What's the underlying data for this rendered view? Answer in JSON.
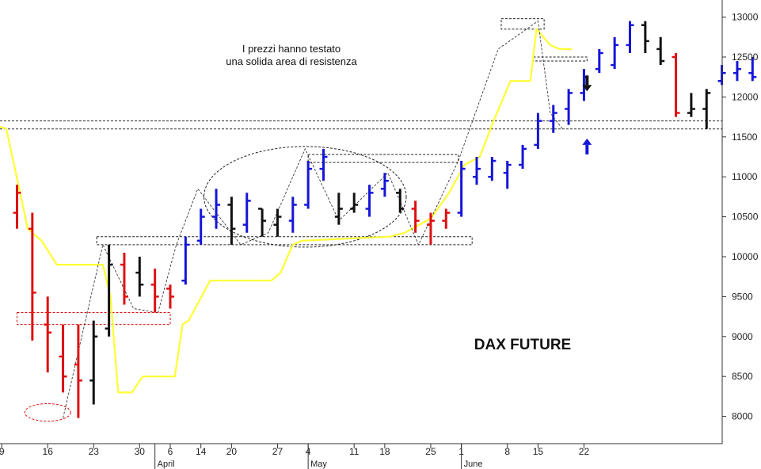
{
  "chart_data": {
    "type": "ohlc",
    "title": "DAX FUTURE",
    "annotation": [
      "I prezzi hanno testato",
      "una solida area di resistenza"
    ],
    "ylim": [
      7550,
      13150
    ],
    "y_ticks": [
      8000,
      8500,
      9000,
      9500,
      10000,
      10500,
      11000,
      11500,
      12000,
      12500,
      13000
    ],
    "x_range": [
      -1,
      37
    ],
    "x_ticks": [
      {
        "i": -1,
        "label": "9"
      },
      {
        "i": 2,
        "label": "16"
      },
      {
        "i": 5,
        "label": "23"
      },
      {
        "i": 8,
        "label": "30"
      },
      {
        "i": 10,
        "label": "6"
      },
      {
        "i": 12,
        "label": "14"
      },
      {
        "i": 14,
        "label": "20"
      },
      {
        "i": 17,
        "label": "27"
      },
      {
        "i": 19,
        "label": "4"
      },
      {
        "i": 22,
        "label": "11"
      },
      {
        "i": 24,
        "label": "18"
      },
      {
        "i": 27,
        "label": "25"
      },
      {
        "i": 29,
        "label": "1"
      },
      {
        "i": 32,
        "label": "8"
      },
      {
        "i": 34,
        "label": "15"
      },
      {
        "i": 37,
        "label": "22"
      }
    ],
    "x_ticks_partial": [
      "9",
      "2"
    ],
    "month_labels": [
      {
        "i": 9,
        "label": "April"
      },
      {
        "i": 19,
        "label": "May"
      },
      {
        "i": 29,
        "label": "June"
      }
    ],
    "colors": {
      "up": "#1515d8",
      "down": "#dd1111",
      "neutral": "#111111",
      "supertrend": "#ffff33"
    },
    "bars": [
      {
        "o": 10550,
        "h": 10900,
        "l": 10350,
        "c": 10800,
        "color": "down"
      },
      {
        "o": 10350,
        "h": 10550,
        "l": 8950,
        "c": 9550,
        "color": "down"
      },
      {
        "o": 9150,
        "h": 9500,
        "l": 8550,
        "c": 9050,
        "color": "down"
      },
      {
        "o": 8750,
        "h": 9150,
        "l": 8300,
        "c": 8500,
        "color": "down"
      },
      {
        "o": 8650,
        "h": 9150,
        "l": 7980,
        "c": 8450,
        "color": "down"
      },
      {
        "o": 8450,
        "h": 9200,
        "l": 8150,
        "c": 9000,
        "color": "neutral"
      },
      {
        "o": 9100,
        "h": 10150,
        "l": 9000,
        "c": 9900,
        "color": "neutral"
      },
      {
        "o": 9900,
        "h": 10050,
        "l": 9400,
        "c": 9500,
        "color": "down"
      },
      {
        "o": 9800,
        "h": 10000,
        "l": 9500,
        "c": 9650,
        "color": "neutral"
      },
      {
        "o": 9650,
        "h": 9850,
        "l": 9300,
        "c": 9500,
        "color": "down"
      },
      {
        "o": 9600,
        "h": 9650,
        "l": 9350,
        "c": 9500,
        "color": "down"
      },
      {
        "o": 9700,
        "h": 10250,
        "l": 9650,
        "c": 10150,
        "color": "up"
      },
      {
        "o": 10200,
        "h": 10600,
        "l": 10150,
        "c": 10500,
        "color": "up"
      },
      {
        "o": 10500,
        "h": 10850,
        "l": 10350,
        "c": 10650,
        "color": "up"
      },
      {
        "o": 10650,
        "h": 10750,
        "l": 10150,
        "c": 10350,
        "color": "neutral"
      },
      {
        "o": 10400,
        "h": 10800,
        "l": 10300,
        "c": 10700,
        "color": "up"
      },
      {
        "o": 10600,
        "h": 10600,
        "l": 10250,
        "c": 10450,
        "color": "neutral"
      },
      {
        "o": 10400,
        "h": 10600,
        "l": 10250,
        "c": 10500,
        "color": "neutral"
      },
      {
        "o": 10450,
        "h": 10750,
        "l": 10300,
        "c": 10650,
        "color": "up"
      },
      {
        "o": 10650,
        "h": 11200,
        "l": 10600,
        "c": 11100,
        "color": "up"
      },
      {
        "o": 11100,
        "h": 11350,
        "l": 10950,
        "c": 11250,
        "color": "up"
      },
      {
        "o": 10500,
        "h": 10800,
        "l": 10400,
        "c": 10600,
        "color": "neutral"
      },
      {
        "o": 10600,
        "h": 10800,
        "l": 10550,
        "c": 10650,
        "color": "neutral"
      },
      {
        "o": 10600,
        "h": 10900,
        "l": 10500,
        "c": 10800,
        "color": "up"
      },
      {
        "o": 10850,
        "h": 11050,
        "l": 10750,
        "c": 10950,
        "color": "up"
      },
      {
        "o": 10800,
        "h": 10850,
        "l": 10550,
        "c": 10600,
        "color": "neutral"
      },
      {
        "o": 10600,
        "h": 10700,
        "l": 10300,
        "c": 10450,
        "color": "down"
      },
      {
        "o": 10400,
        "h": 10550,
        "l": 10150,
        "c": 10450,
        "color": "down"
      },
      {
        "o": 10450,
        "h": 10600,
        "l": 10350,
        "c": 10550,
        "color": "down"
      },
      {
        "o": 10550,
        "h": 11200,
        "l": 10500,
        "c": 11100,
        "color": "up"
      },
      {
        "o": 11000,
        "h": 11250,
        "l": 10900,
        "c": 11100,
        "color": "up"
      },
      {
        "o": 11000,
        "h": 11250,
        "l": 10950,
        "c": 11200,
        "color": "up"
      },
      {
        "o": 11050,
        "h": 11200,
        "l": 10850,
        "c": 11150,
        "color": "up"
      },
      {
        "o": 11150,
        "h": 11400,
        "l": 11100,
        "c": 11350,
        "color": "up"
      },
      {
        "o": 11400,
        "h": 11800,
        "l": 11350,
        "c": 11700,
        "color": "up"
      },
      {
        "o": 11700,
        "h": 11900,
        "l": 11550,
        "c": 11800,
        "color": "up"
      },
      {
        "o": 11850,
        "h": 12100,
        "l": 11650,
        "c": 12050,
        "color": "up"
      },
      {
        "o": 12050,
        "h": 12350,
        "l": 11950,
        "c": 12250,
        "color": "up"
      },
      {
        "o": 12350,
        "h": 12600,
        "l": 12300,
        "c": 12550,
        "color": "up"
      },
      {
        "o": 12400,
        "h": 12750,
        "l": 12350,
        "c": 12650,
        "color": "up"
      },
      {
        "o": 12650,
        "h": 12950,
        "l": 12550,
        "c": 12900,
        "color": "up"
      },
      {
        "o": 12900,
        "h": 12950,
        "l": 12550,
        "c": 12700,
        "color": "neutral"
      },
      {
        "o": 12600,
        "h": 12750,
        "l": 12400,
        "c": 12450,
        "color": "neutral"
      },
      {
        "o": 12500,
        "h": 12550,
        "l": 11750,
        "c": 11800,
        "color": "down"
      },
      {
        "o": 11800,
        "h": 12050,
        "l": 11750,
        "c": 11850,
        "color": "neutral"
      },
      {
        "o": 11850,
        "h": 12100,
        "l": 11600,
        "c": 12050,
        "color": "neutral"
      },
      {
        "o": 12200,
        "h": 12400,
        "l": 12150,
        "c": 12300,
        "color": "up"
      },
      {
        "o": 12300,
        "h": 12450,
        "l": 12200,
        "c": 12350,
        "color": "up"
      },
      {
        "o": 12300,
        "h": 12500,
        "l": 12200,
        "c": 12250,
        "color": "up"
      }
    ],
    "supertrend": [
      [
        -1.4,
        11650
      ],
      [
        -0.7,
        11600
      ],
      [
        0.2,
        10800
      ],
      [
        0.7,
        10350
      ],
      [
        1.6,
        10200
      ],
      [
        2.6,
        9900
      ],
      [
        4.8,
        9900
      ],
      [
        5.6,
        9900
      ],
      [
        6.1,
        9500
      ],
      [
        6.6,
        8300
      ],
      [
        7.5,
        8300
      ],
      [
        8.2,
        8500
      ],
      [
        10.3,
        8500
      ],
      [
        10.8,
        9150
      ],
      [
        11.2,
        9200
      ],
      [
        12.6,
        9700
      ],
      [
        16.6,
        9700
      ],
      [
        17.2,
        9800
      ],
      [
        18.0,
        10150
      ],
      [
        18.6,
        10200
      ],
      [
        24.3,
        10250
      ],
      [
        25.3,
        10300
      ],
      [
        27.0,
        10480
      ],
      [
        28.2,
        10800
      ],
      [
        29.2,
        11150
      ],
      [
        30.2,
        11250
      ],
      [
        31.1,
        11700
      ],
      [
        32.2,
        12200
      ],
      [
        33.5,
        12200
      ],
      [
        33.9,
        12850
      ],
      [
        34.8,
        12650
      ],
      [
        35.4,
        12600
      ],
      [
        36.2,
        12600
      ]
    ],
    "resistance_band": [
      11600,
      11700
    ],
    "rect_zones": [
      {
        "x0": 5.2,
        "x1": 29.7,
        "y0": 10150,
        "y1": 10250,
        "color": "#222222"
      },
      {
        "x0": 0.0,
        "x1": 10.0,
        "y0": 9150,
        "y1": 9300,
        "color": "#dd1111"
      },
      {
        "x0": 19.0,
        "x1": 28.8,
        "y0": 11180,
        "y1": 11280,
        "color": "#222222"
      },
      {
        "x0": 31.6,
        "x1": 34.4,
        "y0": 12850,
        "y1": 12980,
        "color": "#222222"
      },
      {
        "x0": 33.7,
        "x1": 37.2,
        "y0": 12450,
        "y1": 12500,
        "color": "#222222"
      }
    ],
    "ellipses": [
      {
        "cx": 2.0,
        "cy": 8050,
        "rx": 1.5,
        "ry": 110,
        "color": "#dd1111"
      },
      {
        "cx": 18.8,
        "cy": 10750,
        "rx": 6.6,
        "ry": 630,
        "color": "#222222"
      }
    ],
    "zigzag": [
      [
        3.0,
        7980
      ],
      [
        5.6,
        10150
      ],
      [
        7.6,
        9350
      ],
      [
        9.2,
        9300
      ],
      [
        10.4,
        10150
      ],
      [
        11.8,
        10850
      ],
      [
        14.6,
        10150
      ],
      [
        16.4,
        10300
      ],
      [
        18.8,
        11350
      ],
      [
        21.0,
        10450
      ],
      [
        24.2,
        11050
      ],
      [
        26.2,
        10150
      ],
      [
        28.8,
        11200
      ],
      [
        31.4,
        12600
      ],
      [
        34.0,
        12950
      ],
      [
        34.8,
        11800
      ],
      [
        35.6,
        11600
      ]
    ],
    "arrows": [
      {
        "x": 37.2,
        "y": 12150,
        "direction": "down",
        "color": "#111111"
      },
      {
        "x": 37.2,
        "y": 11400,
        "direction": "up",
        "color": "#1515d8"
      }
    ]
  }
}
